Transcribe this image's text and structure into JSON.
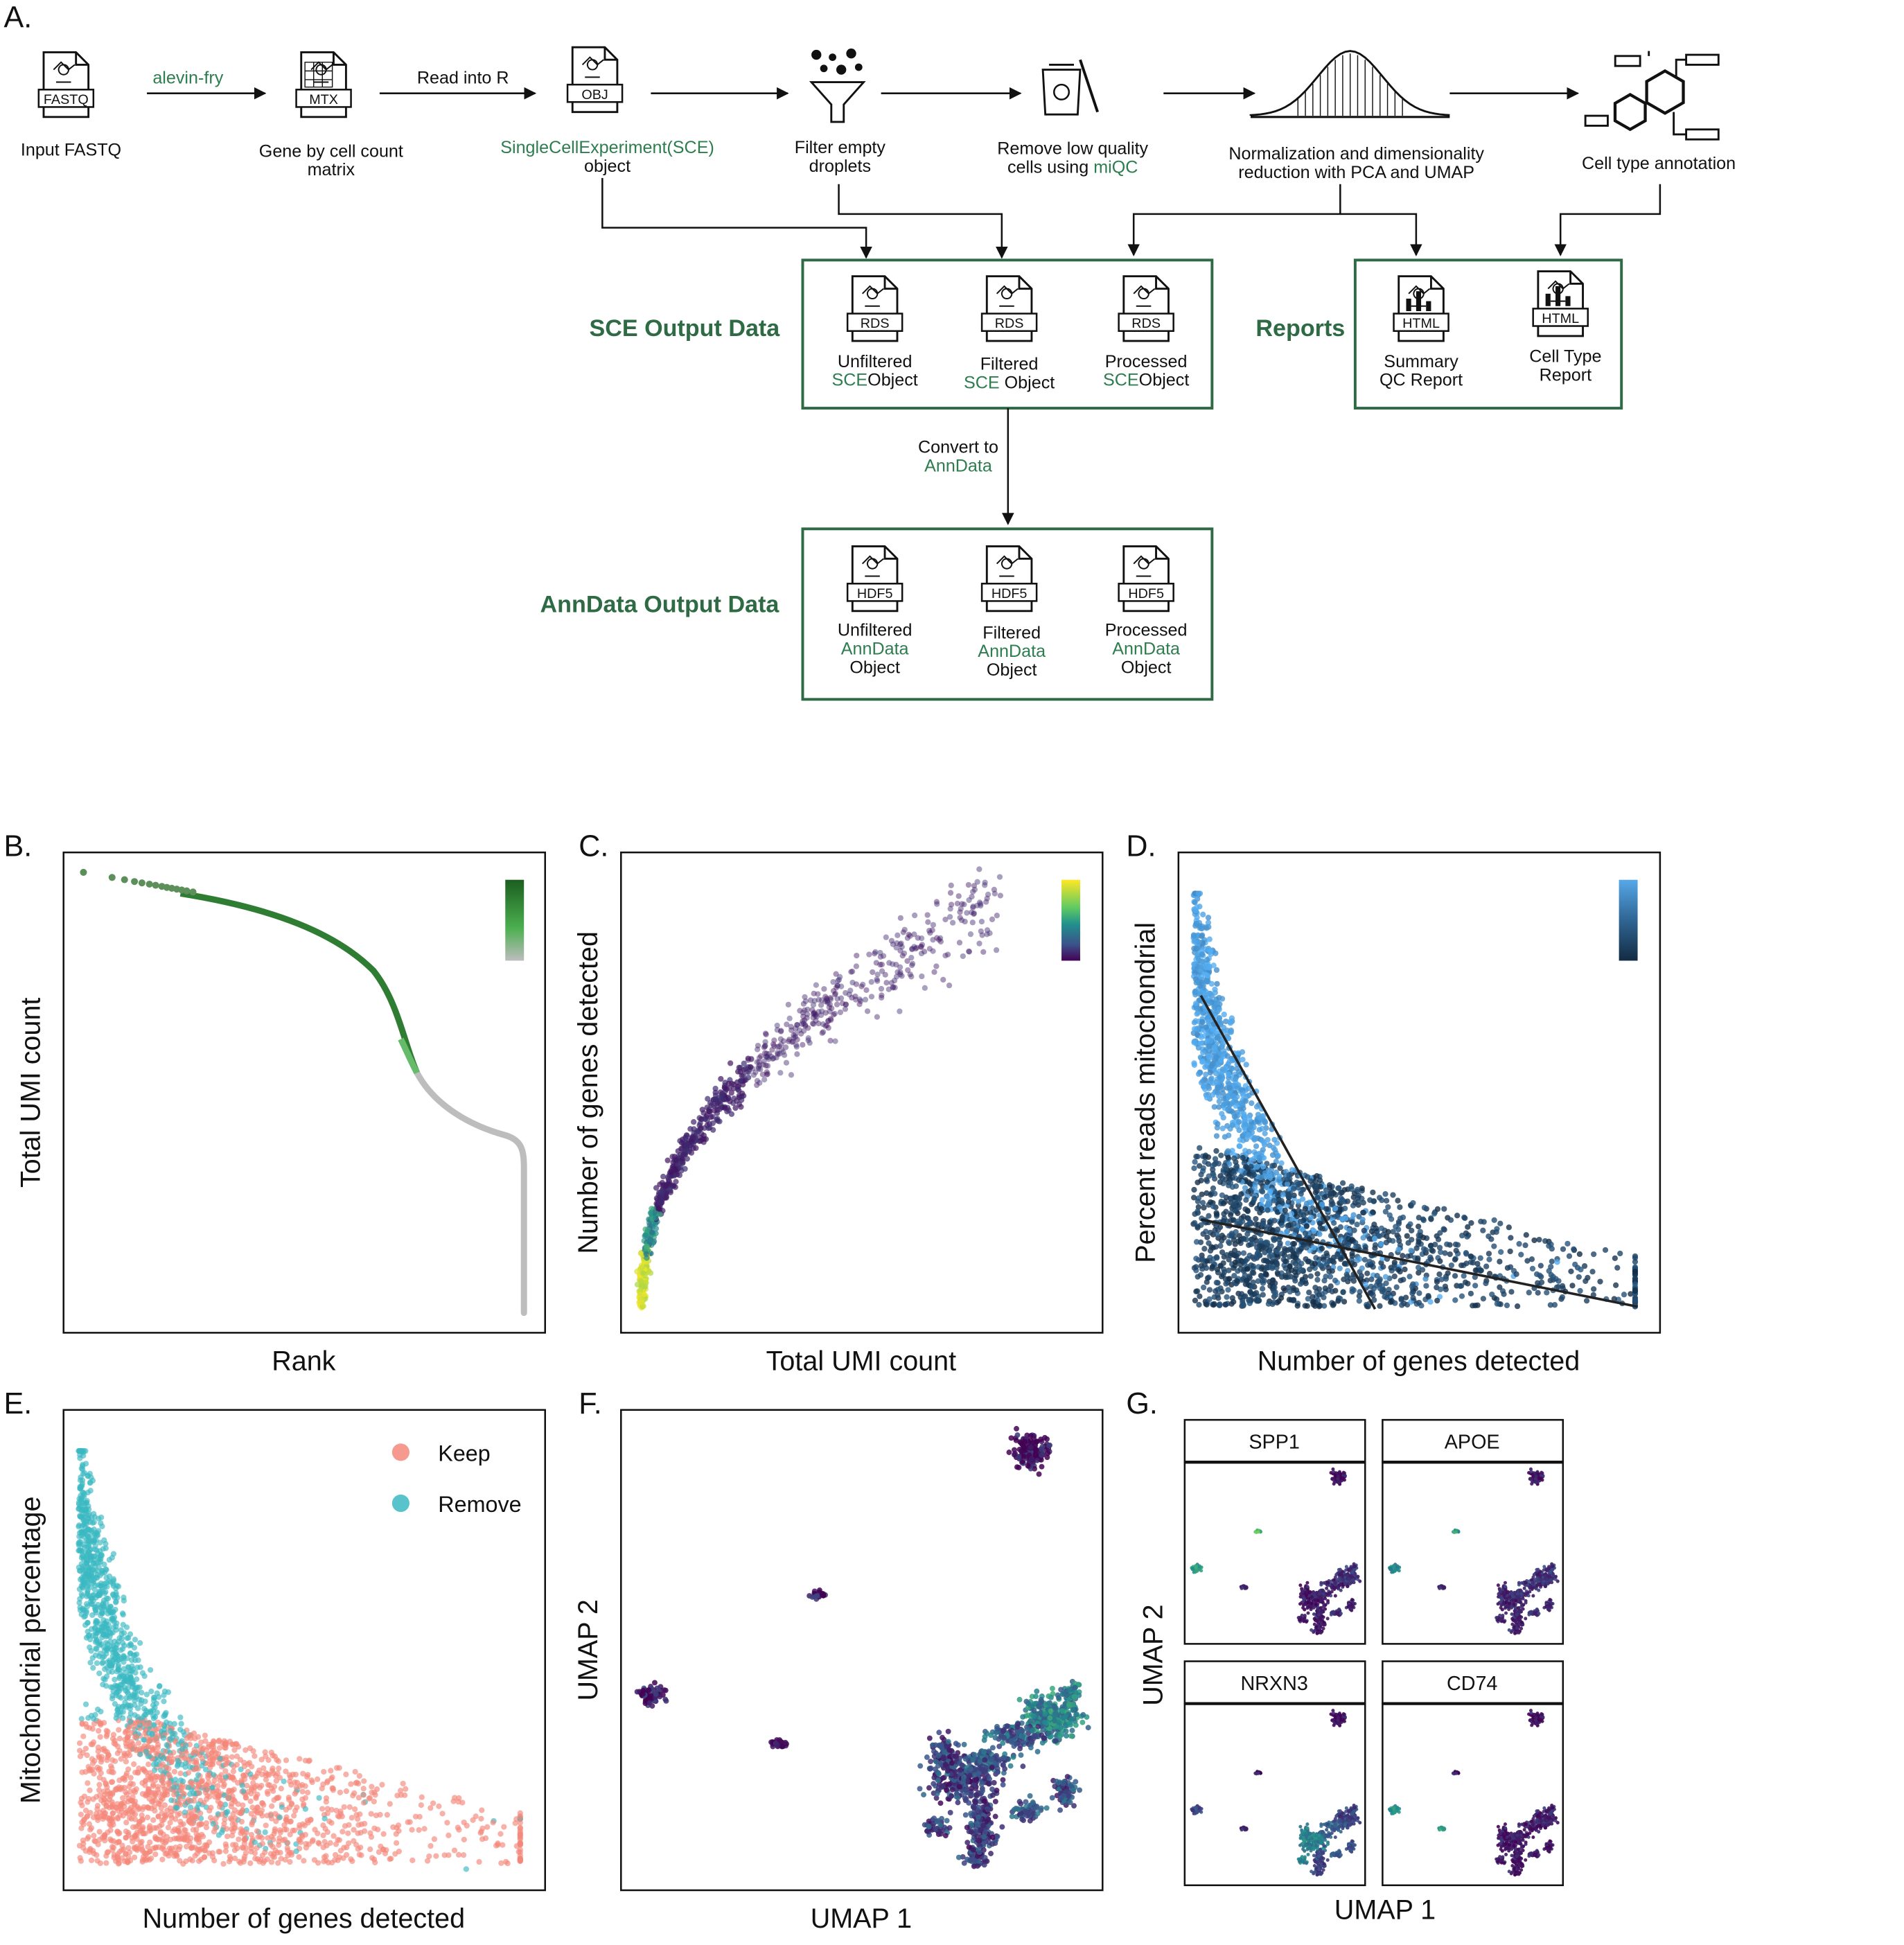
{
  "panels": [
    "A.",
    "B.",
    "C.",
    "D.",
    "E.",
    "F.",
    "G."
  ],
  "pipeline": {
    "steps": [
      {
        "icon": "FASTQ",
        "label": [
          [
            {
              "text": "Input FASTQ"
            }
          ]
        ]
      },
      {
        "icon": "MTX",
        "label": [
          [
            {
              "text": "Gene by cell count"
            }
          ],
          [
            {
              "text": "matrix"
            }
          ]
        ]
      },
      {
        "icon": "OBJ",
        "label": [
          [
            {
              "text": "SingleCellExperiment(SCE)",
              "color": "#2e7d4f"
            }
          ],
          [
            {
              "text": "object"
            }
          ]
        ]
      },
      {
        "label": [
          [
            {
              "text": "Filter empty"
            }
          ],
          [
            {
              "text": "droplets"
            }
          ]
        ]
      },
      {
        "label": [
          [
            {
              "text": "Remove low quality"
            }
          ],
          [
            {
              "text": "cells using "
            },
            {
              "text": "miQC",
              "color": "#2e7d4f"
            }
          ]
        ]
      },
      {
        "label": [
          [
            {
              "text": "Normalization and dimensionality"
            }
          ],
          [
            {
              "text": "reduction with PCA and UMAP"
            }
          ]
        ]
      },
      {
        "label": [
          [
            {
              "text": "Cell type annotation"
            }
          ]
        ]
      }
    ],
    "arrow_labels": [
      [
        [
          {
            "text": "alevin-fry",
            "color": "#2e7d4f"
          }
        ]
      ],
      [
        [
          {
            "text": "Read into R"
          }
        ]
      ]
    ]
  },
  "sce_output": {
    "title": "SCE Output Data",
    "files": [
      {
        "icon": "RDS",
        "label": [
          [
            {
              "text": "Unfiltered"
            }
          ],
          [
            {
              "text": "SCE",
              "color": "#2e7d4f"
            },
            {
              "text": "Object"
            }
          ]
        ]
      },
      {
        "icon": "RDS",
        "label": [
          [
            {
              "text": "Filtered"
            }
          ],
          [
            {
              "text": "SCE ",
              "color": "#2e7d4f"
            },
            {
              "text": "Object"
            }
          ]
        ]
      },
      {
        "icon": "RDS",
        "label": [
          [
            {
              "text": "Processed"
            }
          ],
          [
            {
              "text": "SCE",
              "color": "#2e7d4f"
            },
            {
              "text": "Object"
            }
          ]
        ]
      }
    ]
  },
  "reports": {
    "title": "Reports",
    "files": [
      {
        "icon": "HTML",
        "label": [
          [
            {
              "text": "Summary"
            }
          ],
          [
            {
              "text": "QC Report"
            }
          ]
        ]
      },
      {
        "icon": "HTML",
        "label": [
          [
            {
              "text": "Cell Type"
            }
          ],
          [
            {
              "text": "Report"
            }
          ]
        ]
      }
    ]
  },
  "convert_label": [
    [
      {
        "text": "Convert to"
      }
    ],
    [
      {
        "text": "AnnData",
        "color": "#2e7d4f"
      }
    ]
  ],
  "anndata_output": {
    "title": "AnnData Output Data",
    "files": [
      {
        "icon": "HDF5",
        "label": [
          [
            {
              "text": "Unfiltered"
            }
          ],
          [
            {
              "text": "AnnData",
              "color": "#2e7d4f"
            }
          ],
          [
            {
              "text": "Object"
            }
          ]
        ]
      },
      {
        "icon": "HDF5",
        "label": [
          [
            {
              "text": "Filtered"
            }
          ],
          [
            {
              "text": "AnnData",
              "color": "#2e7d4f"
            }
          ],
          [
            {
              "text": "Object"
            }
          ]
        ]
      },
      {
        "icon": "HDF5",
        "label": [
          [
            {
              "text": "Processed"
            }
          ],
          [
            {
              "text": "AnnData",
              "color": "#2e7d4f"
            }
          ],
          [
            {
              "text": "Object"
            }
          ]
        ]
      }
    ]
  },
  "plots": {
    "B": {
      "xlabel": "Rank",
      "ylabel": "Total UMI count"
    },
    "C": {
      "xlabel": "Total UMI count",
      "ylabel": "Number of genes detected"
    },
    "D": {
      "xlabel": "Number of genes detected",
      "ylabel": "Percent reads mitochondrial"
    },
    "E": {
      "xlabel": "Number of genes detected",
      "ylabel": "Mitochondrial percentage",
      "legend": [
        {
          "name": "Keep",
          "color": "#f4877a"
        },
        {
          "name": "Remove",
          "color": "#3bb9c1"
        }
      ]
    },
    "F": {
      "xlabel": "UMAP 1",
      "ylabel": "UMAP 2"
    },
    "G": {
      "xlabel": "UMAP 1",
      "ylabel": "UMAP 2",
      "facets": [
        "SPP1",
        "APOE",
        "NRXN3",
        "CD74"
      ]
    }
  }
}
